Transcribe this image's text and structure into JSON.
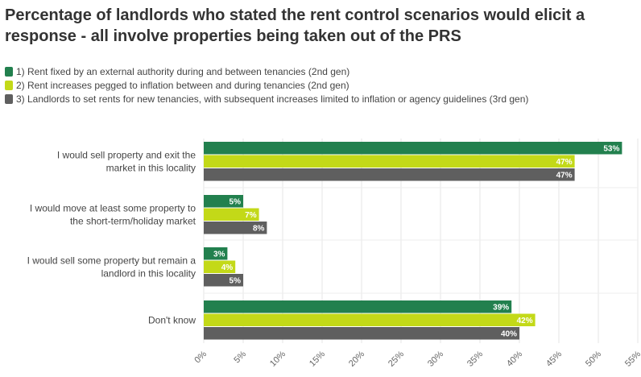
{
  "chart_data": {
    "type": "bar",
    "orientation": "horizontal",
    "title": "Percentage of landlords who stated the rent control scenarios would elicit a response - all involve properties being taken out of the PRS",
    "categories": [
      [
        "I would sell property and exit the",
        "market in this locality"
      ],
      [
        "I would move at least some property to",
        "the short-term/holiday market"
      ],
      [
        "I would sell some property but remain a",
        "landlord in this locality"
      ],
      [
        "Don't know"
      ]
    ],
    "series": [
      {
        "name": "1) Rent fixed by an external authority during and between tenancies (2nd gen)",
        "color": "#22804e",
        "values": [
          53,
          5,
          3,
          39
        ]
      },
      {
        "name": "2) Rent increases pegged to inflation between and during tenancies (2nd gen)",
        "color": "#c3d918",
        "values": [
          47,
          7,
          4,
          42
        ]
      },
      {
        "name": "3) Landlords to set rents for new tenancies, with subsequent increases limited to inflation or agency guidelines (3rd gen)",
        "color": "#5f5f5f",
        "values": [
          47,
          8,
          5,
          40
        ]
      }
    ],
    "value_suffix": "%",
    "xlim": [
      0,
      55
    ],
    "x_ticks": [
      "0%",
      "5%",
      "10%",
      "15%",
      "20%",
      "25%",
      "30%",
      "35%",
      "40%",
      "45%",
      "50%",
      "55%"
    ],
    "tick_values": [
      0,
      5,
      10,
      15,
      20,
      25,
      30,
      35,
      40,
      45,
      50,
      55
    ],
    "grid": true,
    "legend_position": "top-left"
  }
}
